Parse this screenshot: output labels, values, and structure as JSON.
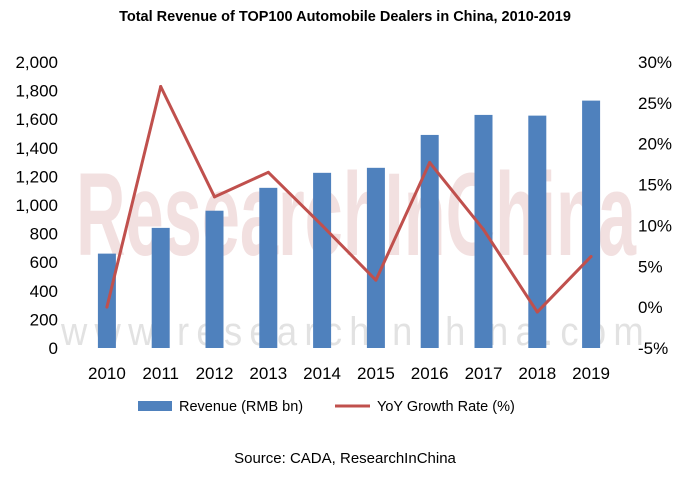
{
  "chart_data": {
    "type": "bar",
    "title": "Total Revenue of TOP100 Automobile Dealers in China, 2010-2019",
    "categories": [
      "2010",
      "2011",
      "2012",
      "2013",
      "2014",
      "2015",
      "2016",
      "2017",
      "2018",
      "2019"
    ],
    "series": [
      {
        "name": "Revenue (RMB bn)",
        "type": "bar",
        "axis": "left",
        "color": "#4f81bd",
        "values": [
          660,
          840,
          960,
          1120,
          1225,
          1260,
          1490,
          1630,
          1625,
          1730
        ]
      },
      {
        "name": "YoY Growth Rate (%)",
        "type": "line",
        "axis": "right",
        "color": "#c0504d",
        "values": [
          0,
          27,
          13.5,
          16.5,
          10,
          3.3,
          17.7,
          9.5,
          -0.6,
          6.2
        ]
      }
    ],
    "y_left": {
      "min": 0,
      "max": 2000,
      "step": 200,
      "tick_labels": [
        "0",
        "200",
        "400",
        "600",
        "800",
        "1,000",
        "1,200",
        "1,400",
        "1,600",
        "1,800",
        "2,000"
      ]
    },
    "y_right": {
      "min": -5,
      "max": 30,
      "step": 5,
      "tick_labels": [
        "-5%",
        "0%",
        "5%",
        "10%",
        "15%",
        "20%",
        "25%",
        "30%"
      ]
    },
    "legend_position": "bottom",
    "source": "Source: CADA, ResearchInChina",
    "watermark": [
      "ResearchInChina",
      "www.researchinchina.com"
    ]
  }
}
